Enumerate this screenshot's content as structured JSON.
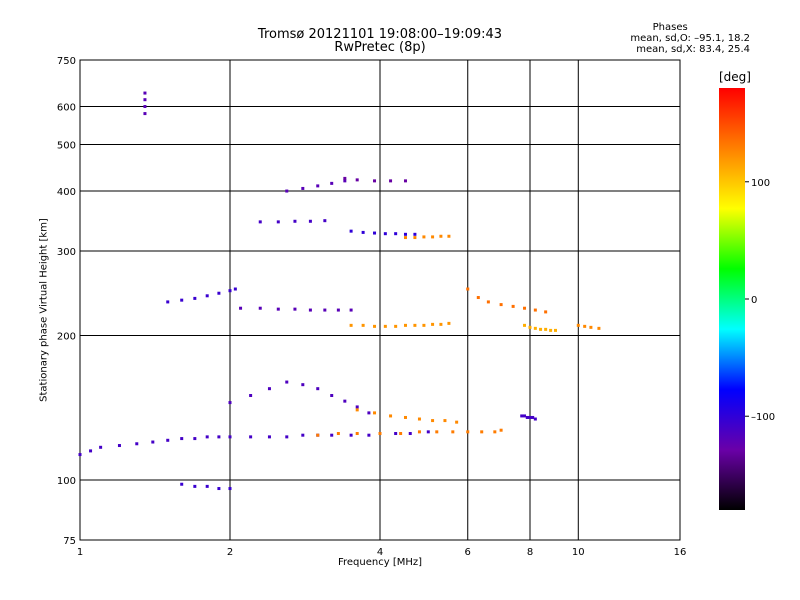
{
  "header": {
    "title": "Tromsø 20121101 19:08:00–19:09:43",
    "subtitle": "RwPretec (8p)"
  },
  "phases": {
    "heading": "Phases",
    "line_o": "mean, sd,O: –95.1, 18.2",
    "line_x": "mean, sd,X:  83.4, 25.4"
  },
  "chart_data": {
    "type": "scatter",
    "xlabel": "Frequency [MHz]",
    "ylabel": "Stationary phase Virtual Height [km]",
    "x_scale": "log",
    "y_scale": "log",
    "xlim": [
      1,
      16
    ],
    "ylim": [
      75,
      750
    ],
    "x_ticks": [
      1,
      2,
      4,
      6,
      8,
      10,
      16
    ],
    "x_tick_labels": [
      "1",
      "2",
      "4",
      "6",
      "8",
      "10",
      "16"
    ],
    "y_ticks": [
      75,
      100,
      200,
      300,
      400,
      500,
      600,
      750
    ],
    "y_tick_labels": [
      "75",
      "100",
      "200",
      "300",
      "400",
      "500",
      "600",
      "750"
    ],
    "grid": true,
    "colorbar": {
      "unit": "[deg]",
      "range": [
        -180,
        180
      ],
      "ticks": [
        100,
        0,
        -100
      ],
      "tick_labels": [
        "100",
        "0",
        "–100"
      ],
      "stops": [
        "#000000",
        "#6a00a8",
        "#0000ff",
        "#00ffff",
        "#00ff00",
        "#ffff00",
        "#ff8000",
        "#ff0000"
      ]
    },
    "series": [
      {
        "x": [
          1.0,
          1.05,
          1.1,
          1.2,
          1.3,
          1.4,
          1.5,
          1.6,
          1.7,
          1.8,
          1.9,
          2.0,
          2.2,
          2.4,
          2.6,
          2.8,
          3.0,
          3.2,
          3.5,
          3.8,
          4.0,
          4.3,
          4.6,
          5.0
        ],
        "y": [
          113,
          115,
          117,
          118,
          119,
          120,
          121,
          122,
          122,
          123,
          123,
          123,
          123,
          123,
          123,
          124,
          124,
          124,
          124,
          124,
          125,
          125,
          125,
          126
        ],
        "phase": -110
      },
      {
        "x": [
          3.0,
          3.3,
          3.6,
          4.0,
          4.4,
          4.8,
          5.2,
          5.6,
          6.0,
          6.4,
          6.8,
          7.0
        ],
        "y": [
          124,
          125,
          125,
          125,
          125,
          126,
          126,
          126,
          126,
          126,
          126,
          127
        ],
        "phase": 130
      },
      {
        "x": [
          1.5,
          1.6,
          1.7,
          1.8,
          1.9,
          2.0,
          2.05
        ],
        "y": [
          235,
          237,
          239,
          242,
          245,
          248,
          250
        ],
        "phase": -105
      },
      {
        "x": [
          2.1,
          2.3,
          2.5,
          2.7,
          2.9,
          3.1,
          3.3,
          3.5
        ],
        "y": [
          228,
          228,
          227,
          227,
          226,
          226,
          226,
          226
        ],
        "phase": -120
      },
      {
        "x": [
          3.5,
          3.7,
          3.9,
          4.1,
          4.3,
          4.5,
          4.7,
          4.9,
          5.1,
          5.3,
          5.5
        ],
        "y": [
          210,
          210,
          209,
          209,
          209,
          210,
          210,
          210,
          211,
          211,
          212
        ],
        "phase": 120
      },
      {
        "x": [
          2.0,
          2.2,
          2.4,
          2.6,
          2.8,
          3.0,
          3.2,
          3.4,
          3.6,
          3.8
        ],
        "y": [
          145,
          150,
          155,
          160,
          158,
          155,
          150,
          146,
          142,
          138
        ],
        "phase": -115
      },
      {
        "x": [
          3.6,
          3.9,
          4.2,
          4.5,
          4.8,
          5.1,
          5.4,
          5.7
        ],
        "y": [
          140,
          138,
          136,
          135,
          134,
          133,
          133,
          132
        ],
        "phase": 125
      },
      {
        "x": [
          2.3,
          2.5,
          2.7,
          2.9,
          3.1
        ],
        "y": [
          345,
          345,
          346,
          346,
          347
        ],
        "phase": -110
      },
      {
        "x": [
          3.5,
          3.7,
          3.9,
          4.1,
          4.3,
          4.5,
          4.7
        ],
        "y": [
          330,
          328,
          327,
          326,
          326,
          325,
          325
        ],
        "phase": -100
      },
      {
        "x": [
          4.5,
          4.7,
          4.9,
          5.1,
          5.3,
          5.5
        ],
        "y": [
          320,
          320,
          321,
          321,
          322,
          322
        ],
        "phase": 125
      },
      {
        "x": [
          2.6,
          2.8,
          3.0,
          3.2,
          3.4
        ],
        "y": [
          400,
          405,
          410,
          415,
          420
        ],
        "phase": -120
      },
      {
        "x": [
          3.4,
          3.6,
          3.9,
          4.2,
          4.5
        ],
        "y": [
          425,
          422,
          420,
          420,
          420
        ],
        "phase": -130
      },
      {
        "x": [
          6.0,
          6.3,
          6.6,
          7.0,
          7.4,
          7.8,
          8.2,
          8.6
        ],
        "y": [
          250,
          240,
          235,
          232,
          230,
          228,
          226,
          224
        ],
        "phase": 135
      },
      {
        "x": [
          7.8,
          8.0,
          8.2,
          8.4,
          8.6,
          8.8,
          9.0
        ],
        "y": [
          210,
          208,
          207,
          206,
          206,
          205,
          205
        ],
        "phase": 110
      },
      {
        "x": [
          10.0,
          10.3,
          10.6,
          11.0
        ],
        "y": [
          210,
          209,
          208,
          207
        ],
        "phase": 125
      },
      {
        "x": [
          1.6,
          1.7,
          1.8,
          1.9,
          2.0
        ],
        "y": [
          98,
          97,
          97,
          96,
          96
        ],
        "phase": -105
      },
      {
        "x": [
          1.35,
          1.35,
          1.35,
          1.35
        ],
        "y": [
          580,
          600,
          620,
          640
        ],
        "phase": -120
      },
      {
        "x": [
          7.7,
          7.8,
          7.9,
          8.0,
          8.1,
          8.2
        ],
        "y": [
          136,
          136,
          135,
          135,
          135,
          134
        ],
        "phase": -110
      }
    ]
  }
}
